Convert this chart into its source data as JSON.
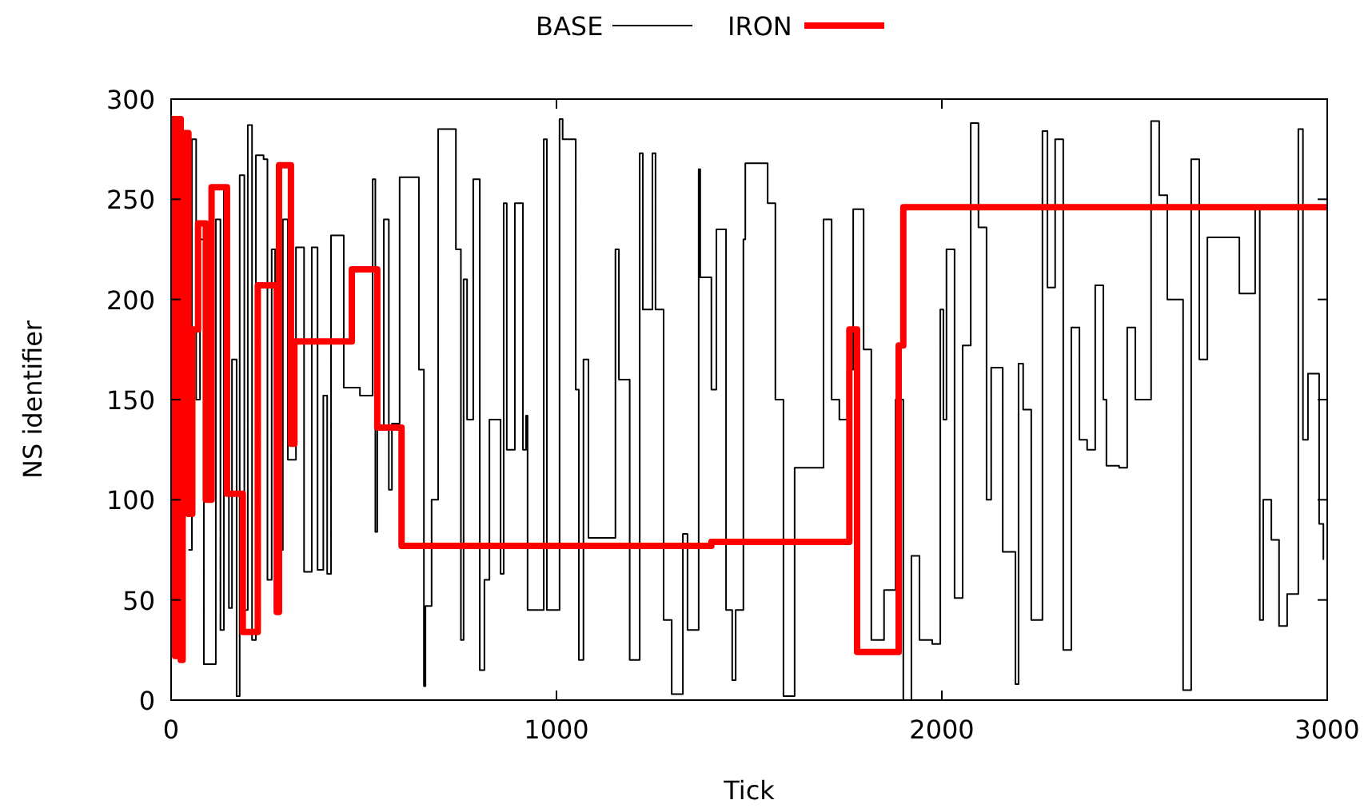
{
  "chart_data": {
    "type": "step",
    "xlabel": "Tick",
    "ylabel": "NS identifier",
    "xlim": [
      0,
      3000
    ],
    "ylim": [
      0,
      300
    ],
    "xticks": [
      0,
      1000,
      2000,
      3000
    ],
    "yticks": [
      0,
      50,
      100,
      150,
      200,
      250,
      300
    ],
    "grid": false,
    "legend": "top",
    "series": [
      {
        "name": "BASE",
        "color": "#000000",
        "x": [
          45,
          54,
          65,
          75,
          85,
          105,
          116,
          128,
          137,
          150,
          158,
          170,
          178,
          190,
          199,
          210,
          220,
          240,
          250,
          261,
          270,
          290,
          303,
          324,
          345,
          365,
          380,
          395,
          405,
          415,
          448,
          490,
          523,
          530,
          535,
          552,
          565,
          573,
          593,
          643,
          656,
          660,
          676,
          693,
          739,
          752,
          759,
          768,
          784,
          801,
          813,
          826,
          855,
          863,
          871,
          892,
          913,
          921,
          925,
          967,
          975,
          1008,
          1016,
          1050,
          1058,
          1070,
          1083,
          1153,
          1162,
          1190,
          1216,
          1224,
          1249,
          1257,
          1278,
          1299,
          1328,
          1340,
          1369,
          1373,
          1402,
          1415,
          1440,
          1456,
          1465,
          1485,
          1490,
          1548,
          1568,
          1589,
          1618,
          1693,
          1714,
          1734,
          1755,
          1770,
          1797,
          1817,
          1850,
          1880,
          1900,
          1921,
          1942,
          1975,
          1996,
          2004,
          2012,
          2033,
          2054,
          2075,
          2095,
          2116,
          2128,
          2158,
          2191,
          2199,
          2211,
          2232,
          2261,
          2274,
          2294,
          2315,
          2336,
          2357,
          2377,
          2398,
          2419,
          2427,
          2460,
          2481,
          2502,
          2543,
          2564,
          2585,
          2626,
          2647,
          2668,
          2689,
          2772,
          2813,
          2825,
          2834,
          2855,
          2875,
          2896,
          2925,
          2937,
          2950,
          2979,
          2990
        ],
        "values": [
          75,
          280,
          150,
          230,
          18,
          18,
          240,
          35,
          255,
          46,
          170,
          2,
          262,
          45,
          287,
          30,
          272,
          270,
          60,
          225,
          75,
          240,
          120,
          226,
          64,
          226,
          65,
          152,
          63,
          232,
          156,
          152,
          260,
          84,
          137,
          240,
          105,
          138,
          261,
          165,
          7,
          47,
          100,
          285,
          225,
          30,
          210,
          140,
          260,
          15,
          60,
          140,
          63,
          248,
          125,
          248,
          125,
          142,
          45,
          280,
          45,
          290,
          280,
          155,
          20,
          170,
          81,
          225,
          160,
          20,
          273,
          195,
          273,
          195,
          40,
          3,
          83,
          35,
          265,
          211,
          155,
          235,
          45,
          10,
          45,
          230,
          268,
          248,
          150,
          2,
          116,
          240,
          150,
          140,
          165,
          245,
          175,
          30,
          55,
          150,
          0,
          72,
          30,
          28,
          195,
          140,
          225,
          51,
          177,
          288,
          236,
          100,
          166,
          74,
          8,
          168,
          145,
          40,
          284,
          206,
          280,
          25,
          186,
          130,
          125,
          207,
          150,
          117,
          116,
          186,
          150,
          289,
          252,
          200,
          5,
          270,
          170,
          231,
          203,
          245,
          40,
          100,
          80,
          37,
          53,
          285,
          130,
          163,
          88,
          70
        ]
      },
      {
        "name": "IRON",
        "color": "#ff0000",
        "x": [
          0,
          10,
          15,
          25,
          30,
          45,
          55,
          70,
          90,
          105,
          145,
          186,
          225,
          274,
          280,
          311,
          320,
          469,
          535,
          598,
          1402,
          1760,
          1780,
          1888,
          1900,
          3000
        ],
        "values": [
          290,
          22,
          290,
          20,
          283,
          93,
          185,
          238,
          100,
          256,
          103,
          34,
          207,
          44,
          267,
          128,
          179,
          215,
          136,
          77,
          79,
          185,
          24,
          177,
          246,
          246
        ]
      }
    ]
  }
}
